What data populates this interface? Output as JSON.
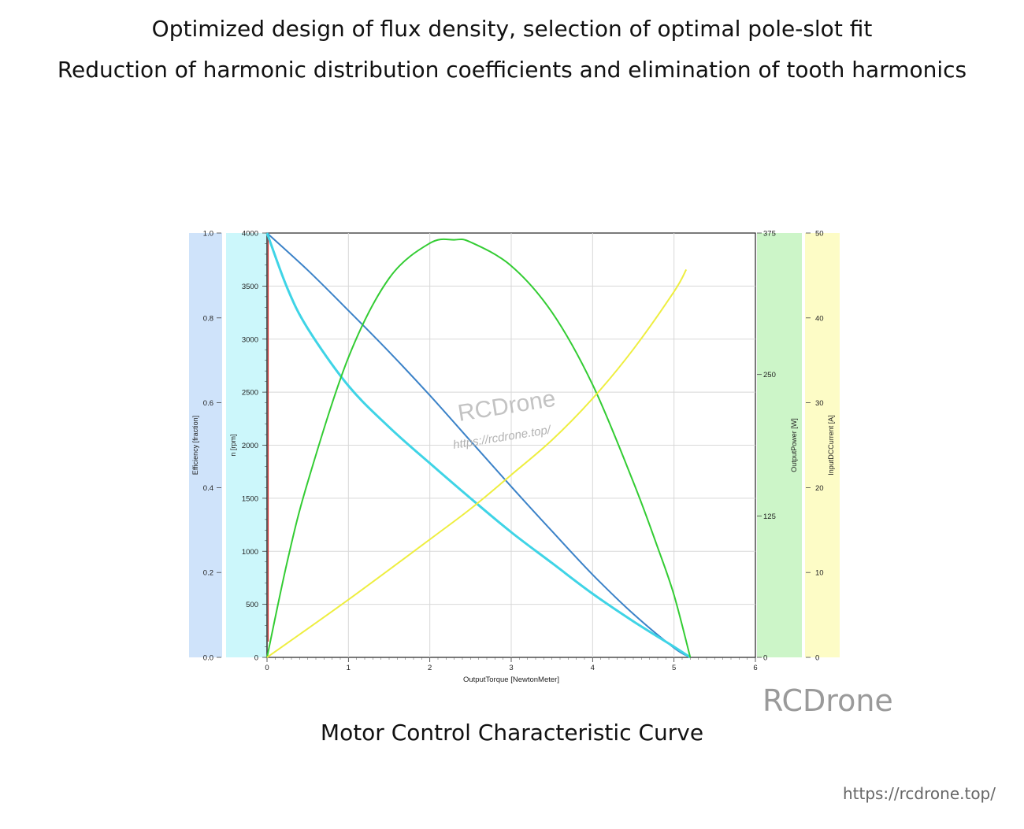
{
  "headings": {
    "line1": "Optimized design of flux density, selection of optimal pole-slot fit",
    "line2": "Reduction of harmonic distribution coefficients and elimination of tooth harmonics"
  },
  "caption": "Motor Control Characteristic Curve",
  "watermarks": {
    "overlay_brand": "RCDrone",
    "overlay_url": "https://rcdrone.top/",
    "corner_brand": "RCDrone",
    "corner_url": "https://rcdrone.top/"
  },
  "chart_data": {
    "type": "line",
    "xlabel": "OutputTorque [NewtonMeter]",
    "xlim": [
      0,
      6
    ],
    "xticks": [
      "0",
      "1",
      "2",
      "3",
      "4",
      "5",
      "6"
    ],
    "grid": true,
    "axes": {
      "efficiency": {
        "label": "Efficiency [fraction]",
        "range": [
          0,
          1
        ],
        "ticks": [
          "0.0",
          "0.2",
          "0.4",
          "0.6",
          "0.8",
          "1.0"
        ],
        "band_color": "#cfe3fa"
      },
      "speed": {
        "label": "n [rpm]",
        "range": [
          0,
          4000
        ],
        "ticks": [
          "0",
          "500",
          "1000",
          "1500",
          "2000",
          "2500",
          "3000",
          "3500",
          "4000"
        ],
        "band_color": "#ccf7fb"
      },
      "power": {
        "label": "OutputPower [W]",
        "range": [
          0,
          375
        ],
        "ticks": [
          "0",
          "125",
          "250",
          "375"
        ],
        "band_color": "#ccf5c8"
      },
      "current": {
        "label": "InputDCCurrent [A]",
        "range": [
          0,
          50
        ],
        "ticks": [
          "0",
          "10",
          "20",
          "30",
          "40",
          "50"
        ],
        "band_color": "#fdfcc6"
      }
    },
    "series": [
      {
        "axis": "speed",
        "color": "#3b82c8",
        "x": [
          0,
          0.5,
          1,
          1.5,
          2,
          2.5,
          3,
          3.5,
          4,
          4.5,
          5,
          5.2
        ],
        "y": [
          4000,
          3650,
          3270,
          2880,
          2470,
          2040,
          1610,
          1190,
          780,
          410,
          90,
          0
        ]
      },
      {
        "axis": "speed",
        "color": "#3fd4e6",
        "x": [
          0,
          0.25,
          0.5,
          1,
          1.5,
          2,
          2.5,
          3,
          3.5,
          4,
          4.5,
          5,
          5.2
        ],
        "y": [
          4000,
          3480,
          3100,
          2560,
          2170,
          1830,
          1500,
          1180,
          890,
          600,
          340,
          100,
          0
        ]
      },
      {
        "axis": "power",
        "color": "#33cc33",
        "x": [
          0,
          0.25,
          0.5,
          1,
          1.5,
          2,
          2.3,
          2.5,
          3,
          3.5,
          4,
          4.5,
          4.8,
          5,
          5.2
        ],
        "y": [
          0,
          85,
          155,
          265,
          335,
          366,
          369,
          367,
          346,
          305,
          241,
          155,
          97,
          55,
          0
        ]
      },
      {
        "axis": "current",
        "color": "#eeee40",
        "x": [
          0,
          1,
          2,
          2.5,
          3,
          3.5,
          4,
          4.5,
          5,
          5.15
        ],
        "y": [
          0,
          6.8,
          13.9,
          17.5,
          21.5,
          25.6,
          30.5,
          36.3,
          43.1,
          45.7
        ]
      }
    ]
  }
}
